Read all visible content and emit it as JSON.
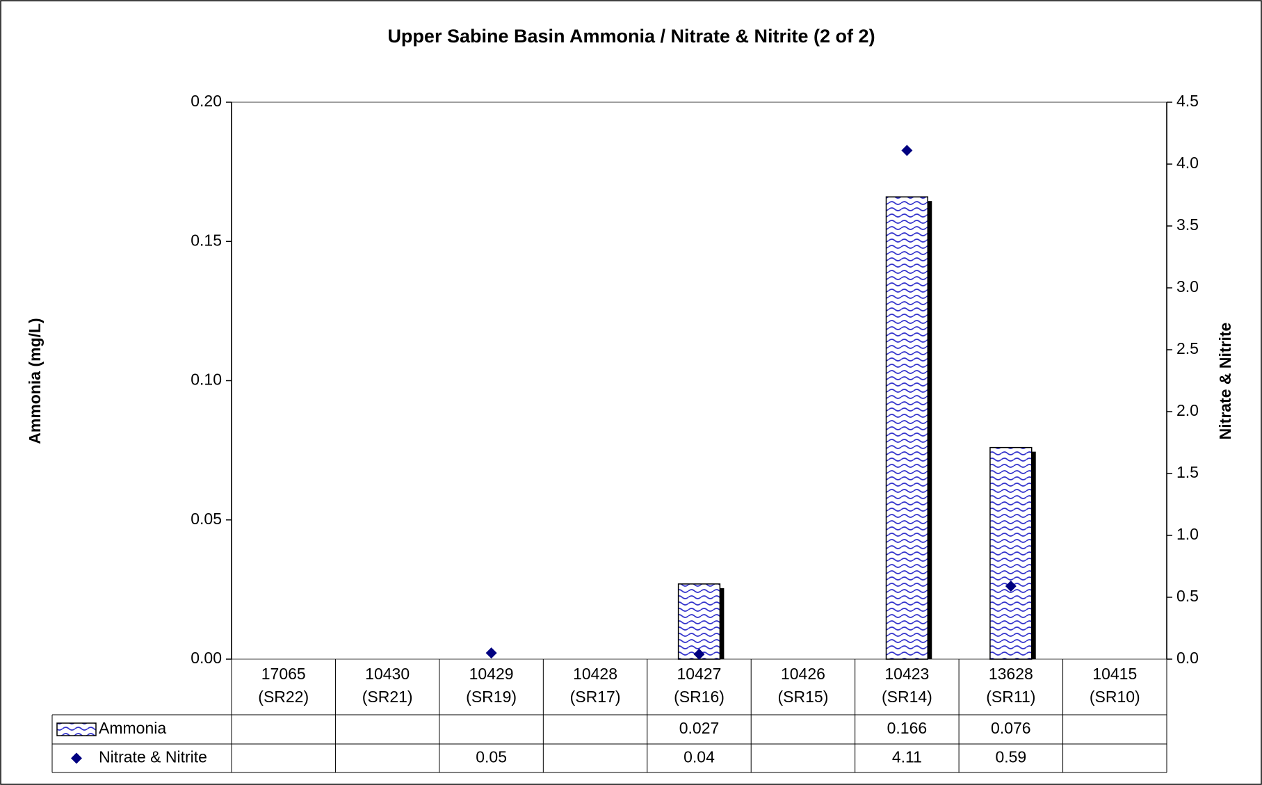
{
  "chart_data": {
    "type": "bar",
    "title": "Upper Sabine Basin Ammonia / Nitrate & Nitrite (2 of 2)",
    "y_axis_label": "Ammonia (mg/L)",
    "y2_axis_label": "Nitrate & Nitrite",
    "categories": [
      [
        "17065",
        "(SR22)"
      ],
      [
        "10430",
        "(SR21)"
      ],
      [
        "10429",
        "(SR19)"
      ],
      [
        "10428",
        "(SR17)"
      ],
      [
        "10427",
        "(SR16)"
      ],
      [
        "10426",
        "(SR15)"
      ],
      [
        "10423",
        "(SR14)"
      ],
      [
        "13628",
        "(SR11)"
      ],
      [
        "10415",
        "(SR10)"
      ]
    ],
    "series": [
      {
        "name": "Ammonia",
        "type": "bar",
        "color": "#3333cc",
        "values": [
          null,
          null,
          null,
          null,
          0.027,
          null,
          0.166,
          0.076,
          null
        ]
      },
      {
        "name": "Nitrate & Nitrite",
        "type": "scatter",
        "axis": "y2",
        "color": "#000080",
        "values": [
          null,
          null,
          0.05,
          null,
          0.04,
          null,
          4.11,
          0.59,
          null
        ]
      }
    ],
    "ylim": [
      0,
      0.2
    ],
    "yticks": [
      {
        "value": 0,
        "label": "0.00"
      },
      {
        "value": 0.05,
        "label": "0.05"
      },
      {
        "value": 0.1,
        "label": "0.10"
      },
      {
        "value": 0.15,
        "label": "0.15"
      },
      {
        "value": 0.2,
        "label": "0.20"
      }
    ],
    "y2lim": [
      0,
      4.5
    ],
    "y2ticks": [
      {
        "value": 0,
        "label": "0.0"
      },
      0.5,
      {
        "value": 1,
        "label": "1.0"
      },
      1.5,
      {
        "value": 2,
        "label": "2.0"
      },
      2.5,
      {
        "value": 3,
        "label": "3.0"
      },
      3.5,
      {
        "value": 4,
        "label": "4.0"
      },
      4.5
    ],
    "grid": false,
    "data_table": true
  }
}
